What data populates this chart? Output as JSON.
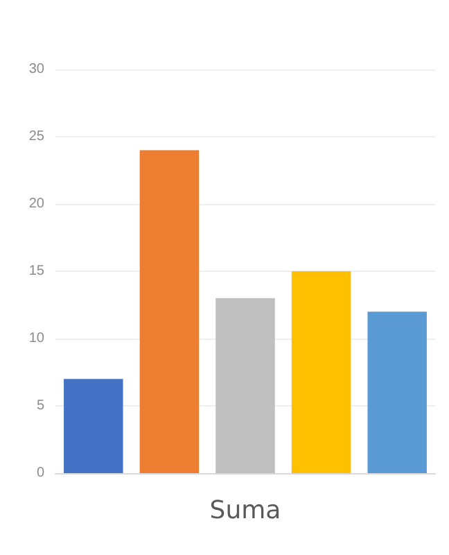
{
  "chart_data": {
    "type": "bar",
    "categories": [
      null,
      null,
      null,
      null,
      null
    ],
    "xlabel": "Suma",
    "values": [
      7,
      24,
      13,
      15,
      12
    ],
    "colors": [
      "#4472c4",
      "#ed7d31",
      "#bfbfbf",
      "#ffc000",
      "#5b9bd5"
    ],
    "ylim": [
      0,
      30
    ],
    "yticks": [
      0,
      5,
      10,
      15,
      20,
      25,
      30
    ],
    "grid": "y"
  }
}
